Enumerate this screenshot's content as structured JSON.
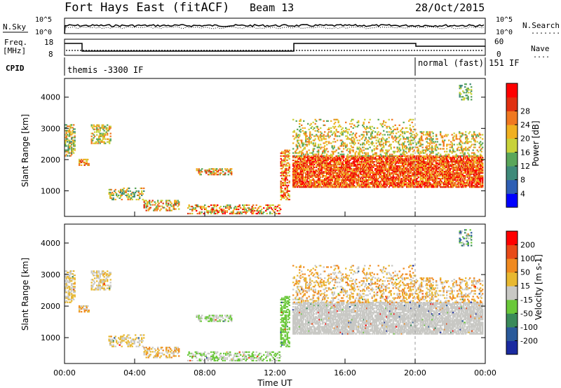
{
  "header": {
    "station": "Fort Hays East (fitACF)",
    "beam": "Beam 13",
    "date": "28/Oct/2015"
  },
  "noise_panel": {
    "left_label": "N.Sky",
    "right_label": "N.Search",
    "right_label_line": "........",
    "left_ticks": [
      "10^5",
      "10^0"
    ],
    "right_ticks": [
      "10^5",
      "10^0"
    ]
  },
  "freq_panel": {
    "left_label_1": "Freq.",
    "left_label_2": "[MHz]",
    "right_label": "Nave",
    "right_label_line": "....",
    "left_ticks": [
      "18",
      "8"
    ],
    "right_ticks": [
      "60",
      "0"
    ]
  },
  "cpid_panel": {
    "label": "CPID",
    "segments": [
      "themis -3300 IF",
      "normal (fast) 151 IF"
    ]
  },
  "chart_data": [
    {
      "type": "heatmap",
      "panel": "power",
      "ylabel": "Slant Range [km]",
      "yticks": [
        "1000",
        "2000",
        "3000",
        "4000"
      ],
      "ylim": [
        180,
        4600
      ],
      "x_range_hours": [
        0,
        24
      ],
      "colorbar_label": "Power [dB]",
      "colorbar_ticks": [
        "4",
        "8",
        "12",
        "16",
        "20",
        "24",
        "28"
      ],
      "colorbar_colors": [
        "#0000ff",
        "#2f5fb4",
        "#3f8a7a",
        "#5aa65a",
        "#c8d23a",
        "#f0b020",
        "#f07820",
        "#e03010",
        "#ff0000"
      ]
    },
    {
      "type": "heatmap",
      "panel": "velocity",
      "ylabel": "Slant Range [km]",
      "yticks": [
        "1000",
        "2000",
        "3000",
        "4000"
      ],
      "ylim": [
        180,
        4600
      ],
      "x_range_hours": [
        0,
        24
      ],
      "xlabel": "Time UT",
      "xticks": [
        "00:00",
        "04:00",
        "08:00",
        "12:00",
        "16:00",
        "20:00",
        "00:00"
      ],
      "colorbar_label": "Velocity [m s-1]",
      "colorbar_ticks": [
        "200",
        "100",
        "50",
        "15",
        "-15",
        "-50",
        "-100",
        "-200"
      ],
      "colorbar_colors": [
        "#1a2aa0",
        "#2a5a9a",
        "#3a8a5a",
        "#6ac83a",
        "#c8c8c4",
        "#e8b830",
        "#f08a20",
        "#e84a18",
        "#ff0000"
      ]
    }
  ]
}
